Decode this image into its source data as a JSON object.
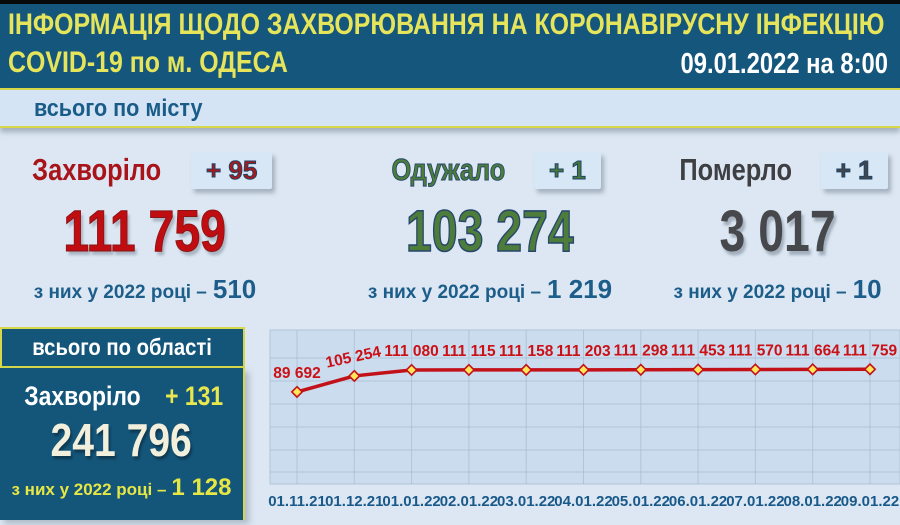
{
  "header": {
    "title_line1": "ІНФОРМАЦІЯ ЩОДО ЗАХВОРЮВАННЯ НА КОРОНАВІРУСНУ ІНФЕКЦІЮ",
    "title_line2": "COVID-19 по м. ОДЕСА",
    "datetime": "09.01.2022 на 8:00"
  },
  "city_bar": {
    "label": "всього по місту"
  },
  "city_stats": [
    {
      "label": "Захворіло",
      "delta": "+ 95",
      "value": "111 759",
      "note_prefix": "з них у 2022 році –",
      "note_value": "510"
    },
    {
      "label": "Одужало",
      "delta": "+ 1",
      "value": "103 274",
      "note_prefix": "з них у 2022 році –",
      "note_value": "1 219"
    },
    {
      "label": "Померло",
      "delta": "+ 1",
      "value": "3 017",
      "note_prefix": "з них у 2022 році –",
      "note_value": "10"
    }
  ],
  "region": {
    "bar_label": "всього по області",
    "label": "Захворіло",
    "delta": "+ 131",
    "value": "241 796",
    "note_prefix": "з них у 2022 році –",
    "note_value": "1 128"
  },
  "colors": {
    "header_bg": "#15567c",
    "accent_yellow": "#e5e45a",
    "infected_red": "#c00d12",
    "recovered_green": "#4e7d3b",
    "died_gray": "#47484b",
    "note_blue": "#1c5d89",
    "region_bg": "#14567a",
    "chart_line": "#c31119",
    "marker_fill": "#ffe65a"
  },
  "chart_data": {
    "type": "line",
    "x": [
      "01.11.21",
      "01.12.21",
      "01.01.22",
      "02.01.22",
      "03.01.22",
      "04.01.22",
      "05.01.22",
      "06.01.22",
      "07.01.22",
      "08.01.22",
      "09.01.22"
    ],
    "values": [
      89692,
      105254,
      111080,
      111115,
      111158,
      111203,
      111298,
      111453,
      111570,
      111664,
      111759
    ],
    "labels": [
      "89 692",
      "105 254",
      "111 080",
      "111 115",
      "111 158",
      "111 203",
      "111 298",
      "111 453",
      "111 570",
      "111 664",
      "111 759"
    ],
    "title": "",
    "xlabel": "",
    "ylabel": "",
    "ylim": [
      0,
      150000
    ],
    "grid": true,
    "legend": "none",
    "line_color": "#c31119",
    "marker_fill": "#ffe65a",
    "marker_stroke": "#c31119",
    "point_label_color": "#cb1016",
    "axis_label_color": "#19598a",
    "plot_bg": "#cadcee",
    "grid_color": "#a9bed3"
  }
}
